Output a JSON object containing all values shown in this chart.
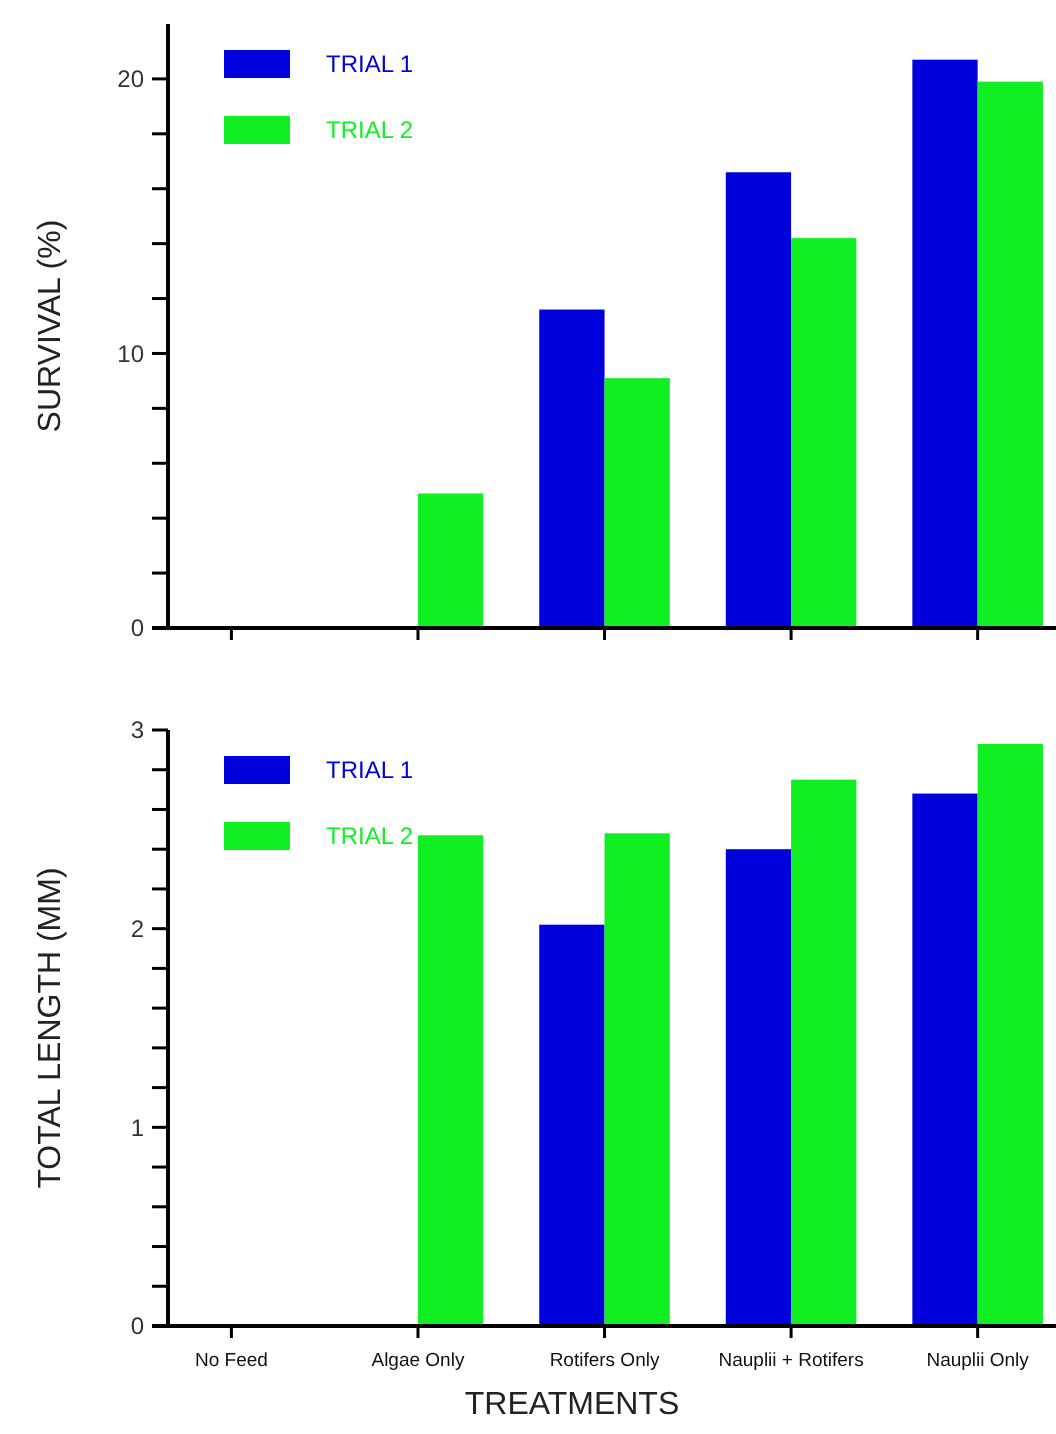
{
  "chart_data": [
    {
      "type": "bar",
      "ylabel": "SURVIVAL (%)",
      "categories": [
        null,
        null,
        null,
        null,
        null
      ],
      "legend": "top left",
      "ylim": [
        0,
        22
      ],
      "yticks": [
        0,
        {
          "value": 2,
          "label": null
        },
        {
          "value": 4,
          "label": null
        },
        {
          "value": 6,
          "label": null
        },
        {
          "value": 8,
          "label": null
        },
        10,
        {
          "value": 12,
          "label": null
        },
        {
          "value": 14,
          "label": null
        },
        {
          "value": 16,
          "label": null
        },
        {
          "value": 18,
          "label": null
        },
        20
      ],
      "series": [
        {
          "name": "TRIAL 1",
          "color": "#0000dd",
          "values": [
            0,
            0,
            11.6,
            16.6,
            20.7
          ]
        },
        {
          "name": "TRIAL 2",
          "color": "#11ee22",
          "values": [
            0,
            4.9,
            9.1,
            14.2,
            19.9
          ]
        }
      ]
    },
    {
      "type": "bar",
      "ylabel": "TOTAL LENGTH (MM)",
      "xlabel": "TREATMENTS",
      "categories": [
        "No Feed",
        "Algae Only",
        "Rotifers Only",
        "Nauplii + Rotifers",
        "Nauplii Only"
      ],
      "legend": "top left",
      "ylim": [
        0,
        3
      ],
      "yticks": [
        0,
        {
          "value": 0.2,
          "label": null
        },
        {
          "value": 0.4,
          "label": null
        },
        {
          "value": 0.6,
          "label": null
        },
        {
          "value": 0.8,
          "label": null
        },
        1,
        {
          "value": 1.2,
          "label": null
        },
        {
          "value": 1.4,
          "label": null
        },
        {
          "value": 1.6,
          "label": null
        },
        {
          "value": 1.8,
          "label": null
        },
        2,
        {
          "value": 2.2,
          "label": null
        },
        {
          "value": 2.4,
          "label": null
        },
        {
          "value": 2.6,
          "label": null
        },
        {
          "value": 2.8,
          "label": null
        },
        3
      ],
      "series": [
        {
          "name": "TRIAL 1",
          "color": "#0000dd",
          "values": [
            0,
            0,
            2.02,
            2.4,
            2.68
          ]
        },
        {
          "name": "TRIAL 2",
          "color": "#11ee22",
          "values": [
            0,
            2.47,
            2.48,
            2.75,
            2.93
          ]
        }
      ]
    }
  ]
}
